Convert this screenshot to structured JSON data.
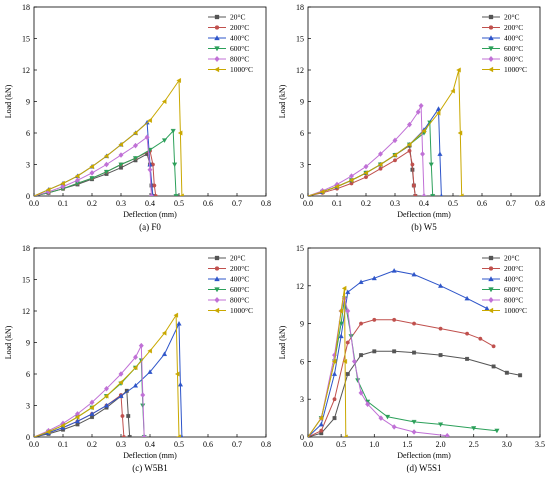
{
  "chart_data": [
    {
      "type": "line",
      "caption": "(a) F0",
      "xlabel": "Deflection (mm)",
      "ylabel": "Load (kN)",
      "xlim": [
        0.0,
        0.8
      ],
      "ylim": [
        0,
        18
      ],
      "xticks": [
        "0.0",
        "0.1",
        "0.2",
        "0.3",
        "0.4",
        "0.5",
        "0.6",
        "0.7",
        "0.8"
      ],
      "yticks": [
        "0",
        "3",
        "6",
        "9",
        "12",
        "15",
        "18"
      ],
      "legend": "top-right",
      "series": [
        {
          "name": "20°C",
          "color": "#555555",
          "marker": "square",
          "x": [
            0,
            0.05,
            0.1,
            0.15,
            0.2,
            0.25,
            0.3,
            0.35,
            0.39,
            0.4,
            0.405,
            0.41
          ],
          "y": [
            0,
            0.3,
            0.7,
            1.1,
            1.6,
            2.1,
            2.7,
            3.4,
            4.0,
            3.0,
            1.0,
            0
          ]
        },
        {
          "name": "200°C",
          "color": "#c0504d",
          "marker": "circle",
          "x": [
            0,
            0.05,
            0.1,
            0.15,
            0.2,
            0.25,
            0.3,
            0.35,
            0.4,
            0.41,
            0.415,
            0.42
          ],
          "y": [
            0,
            0.3,
            0.7,
            1.2,
            1.7,
            2.3,
            3.0,
            3.6,
            4.3,
            3.0,
            1.0,
            0
          ]
        },
        {
          "name": "400°C",
          "color": "#2e55c9",
          "marker": "triangle-up",
          "x": [
            0,
            0.05,
            0.1,
            0.15,
            0.2,
            0.25,
            0.3,
            0.35,
            0.39,
            0.4,
            0.41
          ],
          "y": [
            0,
            0.6,
            1.2,
            1.9,
            2.8,
            3.8,
            4.9,
            6.0,
            7.0,
            3.0,
            0
          ]
        },
        {
          "name": "600°C",
          "color": "#2ca05a",
          "marker": "triangle-down",
          "x": [
            0,
            0.05,
            0.1,
            0.15,
            0.2,
            0.25,
            0.3,
            0.35,
            0.4,
            0.45,
            0.48,
            0.485,
            0.49
          ],
          "y": [
            0,
            0.3,
            0.7,
            1.2,
            1.7,
            2.3,
            3.0,
            3.6,
            4.4,
            5.3,
            6.2,
            3.0,
            0
          ]
        },
        {
          "name": "800°C",
          "color": "#c070d6",
          "marker": "diamond",
          "x": [
            0,
            0.05,
            0.1,
            0.15,
            0.2,
            0.25,
            0.3,
            0.35,
            0.39,
            0.4,
            0.405
          ],
          "y": [
            0,
            0.4,
            0.9,
            1.5,
            2.2,
            3.0,
            3.9,
            4.8,
            5.6,
            2.5,
            0
          ]
        },
        {
          "name": "1000°C",
          "color": "#c9a800",
          "marker": "triangle-left",
          "x": [
            0,
            0.05,
            0.1,
            0.15,
            0.2,
            0.25,
            0.3,
            0.35,
            0.4,
            0.45,
            0.5,
            0.505,
            0.51
          ],
          "y": [
            0,
            0.6,
            1.2,
            1.9,
            2.8,
            3.8,
            4.9,
            6.0,
            7.2,
            9.0,
            11.0,
            6.0,
            0
          ]
        }
      ]
    },
    {
      "type": "line",
      "caption": "(b) W5",
      "xlabel": "Deflection (mm)",
      "ylabel": "Load (kN)",
      "xlim": [
        0.0,
        0.8
      ],
      "ylim": [
        0,
        18
      ],
      "xticks": [
        "0.0",
        "0.1",
        "0.2",
        "0.3",
        "0.4",
        "0.5",
        "0.6",
        "0.7",
        "0.8"
      ],
      "yticks": [
        "0",
        "3",
        "6",
        "9",
        "12",
        "15",
        "18"
      ],
      "legend": "top-right",
      "series": [
        {
          "name": "20°C",
          "color": "#555555",
          "marker": "square",
          "x": [
            0,
            0.05,
            0.1,
            0.15,
            0.2,
            0.25,
            0.3,
            0.35,
            0.36,
            0.365,
            0.37
          ],
          "y": [
            0,
            0.4,
            0.9,
            1.5,
            2.2,
            3.0,
            3.9,
            4.8,
            2.5,
            1.0,
            0
          ]
        },
        {
          "name": "200°C",
          "color": "#c0504d",
          "marker": "circle",
          "x": [
            0,
            0.05,
            0.1,
            0.15,
            0.2,
            0.25,
            0.3,
            0.35,
            0.36,
            0.365,
            0.37
          ],
          "y": [
            0,
            0.3,
            0.7,
            1.2,
            1.8,
            2.6,
            3.4,
            4.3,
            3.0,
            1.0,
            0
          ]
        },
        {
          "name": "400°C",
          "color": "#2e55c9",
          "marker": "triangle-up",
          "x": [
            0,
            0.05,
            0.1,
            0.15,
            0.2,
            0.25,
            0.3,
            0.35,
            0.4,
            0.45,
            0.455,
            0.46
          ],
          "y": [
            0,
            0.4,
            0.9,
            1.5,
            2.2,
            3.0,
            3.9,
            4.9,
            6.3,
            8.3,
            4.0,
            0
          ]
        },
        {
          "name": "600°C",
          "color": "#2ca05a",
          "marker": "triangle-down",
          "x": [
            0,
            0.05,
            0.1,
            0.15,
            0.2,
            0.25,
            0.3,
            0.35,
            0.4,
            0.42,
            0.425,
            0.43
          ],
          "y": [
            0,
            0.4,
            0.9,
            1.5,
            2.2,
            3.0,
            3.9,
            4.9,
            6.0,
            7.0,
            3.0,
            0
          ]
        },
        {
          "name": "800°C",
          "color": "#c070d6",
          "marker": "diamond",
          "x": [
            0,
            0.05,
            0.1,
            0.15,
            0.2,
            0.25,
            0.3,
            0.35,
            0.38,
            0.39,
            0.395,
            0.4
          ],
          "y": [
            0,
            0.5,
            1.1,
            1.9,
            2.8,
            4.0,
            5.3,
            6.8,
            8.0,
            8.6,
            4.0,
            0
          ]
        },
        {
          "name": "1000°C",
          "color": "#c9a800",
          "marker": "triangle-left",
          "x": [
            0,
            0.05,
            0.1,
            0.15,
            0.2,
            0.25,
            0.3,
            0.35,
            0.4,
            0.45,
            0.5,
            0.52,
            0.525,
            0.53
          ],
          "y": [
            0,
            0.4,
            0.9,
            1.5,
            2.2,
            3.0,
            3.9,
            4.9,
            6.2,
            7.9,
            10.0,
            12.0,
            6.0,
            0
          ]
        }
      ]
    },
    {
      "type": "line",
      "caption": "(c) W5B1",
      "xlabel": "Deflection (mm)",
      "ylabel": "Load (kN)",
      "xlim": [
        0.0,
        0.8
      ],
      "ylim": [
        0,
        18
      ],
      "xticks": [
        "0.0",
        "0.1",
        "0.2",
        "0.3",
        "0.4",
        "0.5",
        "0.6",
        "0.7",
        "0.8"
      ],
      "yticks": [
        "0",
        "3",
        "6",
        "9",
        "12",
        "15",
        "18"
      ],
      "legend": "top-right",
      "series": [
        {
          "name": "20°C",
          "color": "#555555",
          "marker": "square",
          "x": [
            0,
            0.05,
            0.1,
            0.15,
            0.2,
            0.25,
            0.3,
            0.32,
            0.325,
            0.33
          ],
          "y": [
            0,
            0.3,
            0.7,
            1.2,
            1.9,
            2.8,
            3.9,
            4.4,
            2.0,
            0
          ]
        },
        {
          "name": "200°C",
          "color": "#c0504d",
          "marker": "circle",
          "x": [
            0,
            0.05,
            0.1,
            0.15,
            0.2,
            0.25,
            0.3,
            0.305,
            0.31
          ],
          "y": [
            0,
            0.4,
            0.9,
            1.5,
            2.2,
            3.0,
            4.0,
            2.0,
            0
          ]
        },
        {
          "name": "400°C",
          "color": "#2e55c9",
          "marker": "triangle-up",
          "x": [
            0,
            0.05,
            0.1,
            0.15,
            0.2,
            0.25,
            0.3,
            0.35,
            0.4,
            0.45,
            0.5,
            0.505,
            0.51
          ],
          "y": [
            0,
            0.4,
            0.9,
            1.5,
            2.2,
            3.0,
            3.9,
            4.9,
            6.2,
            7.9,
            10.8,
            5.0,
            0
          ]
        },
        {
          "name": "600°C",
          "color": "#2ca05a",
          "marker": "triangle-down",
          "x": [
            0,
            0.05,
            0.1,
            0.15,
            0.2,
            0.25,
            0.3,
            0.35,
            0.37,
            0.375,
            0.38
          ],
          "y": [
            0,
            0.5,
            1.1,
            1.9,
            2.8,
            3.9,
            5.1,
            6.6,
            7.3,
            3.0,
            0
          ]
        },
        {
          "name": "800°C",
          "color": "#c070d6",
          "marker": "diamond",
          "x": [
            0,
            0.05,
            0.1,
            0.15,
            0.2,
            0.25,
            0.3,
            0.35,
            0.37,
            0.375,
            0.38
          ],
          "y": [
            0,
            0.6,
            1.3,
            2.2,
            3.3,
            4.6,
            6.0,
            7.6,
            8.7,
            4.0,
            0
          ]
        },
        {
          "name": "1000°C",
          "color": "#c9a800",
          "marker": "triangle-left",
          "x": [
            0,
            0.05,
            0.1,
            0.15,
            0.2,
            0.25,
            0.3,
            0.35,
            0.4,
            0.45,
            0.49,
            0.495,
            0.5
          ],
          "y": [
            0,
            0.5,
            1.1,
            1.9,
            2.8,
            3.9,
            5.2,
            6.6,
            8.2,
            9.9,
            11.6,
            6.0,
            0
          ]
        }
      ]
    },
    {
      "type": "line",
      "caption": "(d) W5S1",
      "xlabel": "Deflection (mm)",
      "ylabel": "Load (kN)",
      "xlim": [
        0.0,
        3.5
      ],
      "ylim": [
        0,
        15
      ],
      "xticks": [
        "0.0",
        "0.5",
        "1.0",
        "1.5",
        "2.0",
        "2.5",
        "3.0",
        "3.5"
      ],
      "yticks": [
        "0",
        "3",
        "6",
        "9",
        "12",
        "15"
      ],
      "legend": "top-right",
      "series": [
        {
          "name": "20°C",
          "color": "#555555",
          "marker": "square",
          "x": [
            0,
            0.2,
            0.4,
            0.6,
            0.8,
            1.0,
            1.3,
            1.6,
            2.0,
            2.4,
            2.8,
            3.0,
            3.2
          ],
          "y": [
            0,
            0.3,
            1.5,
            5.0,
            6.5,
            6.8,
            6.8,
            6.7,
            6.5,
            6.2,
            5.6,
            5.1,
            4.9
          ]
        },
        {
          "name": "200°C",
          "color": "#c0504d",
          "marker": "circle",
          "x": [
            0,
            0.2,
            0.4,
            0.6,
            0.8,
            1.0,
            1.3,
            1.6,
            2.0,
            2.4,
            2.6,
            2.8
          ],
          "y": [
            0,
            0.5,
            3.0,
            7.5,
            9.0,
            9.3,
            9.3,
            9.0,
            8.6,
            8.2,
            7.8,
            7.2
          ]
        },
        {
          "name": "400°C",
          "color": "#2e55c9",
          "marker": "triangle-up",
          "x": [
            0,
            0.2,
            0.4,
            0.5,
            0.6,
            0.8,
            1.0,
            1.3,
            1.6,
            2.0,
            2.4,
            2.7
          ],
          "y": [
            0,
            1.0,
            5.0,
            8.0,
            11.5,
            12.3,
            12.6,
            13.2,
            12.9,
            12.0,
            11.0,
            10.2
          ]
        },
        {
          "name": "600°C",
          "color": "#2ca05a",
          "marker": "triangle-down",
          "x": [
            0,
            0.2,
            0.4,
            0.5,
            0.55,
            0.65,
            0.75,
            0.9,
            1.2,
            1.6,
            2.0,
            2.5,
            2.85
          ],
          "y": [
            0,
            1.5,
            6.0,
            9.0,
            11.0,
            8.0,
            4.5,
            2.8,
            1.6,
            1.2,
            1.0,
            0.7,
            0.5
          ]
        },
        {
          "name": "800°C",
          "color": "#c070d6",
          "marker": "diamond",
          "x": [
            0,
            0.2,
            0.4,
            0.5,
            0.55,
            0.6,
            0.7,
            0.8,
            0.9,
            1.1,
            1.3,
            1.6,
            2.1
          ],
          "y": [
            0,
            1.5,
            6.5,
            10.0,
            11.0,
            10.0,
            6.0,
            3.5,
            2.6,
            1.5,
            0.8,
            0.4,
            0.1
          ]
        },
        {
          "name": "1000°C",
          "color": "#c9a800",
          "marker": "triangle-left",
          "x": [
            0,
            0.2,
            0.4,
            0.5,
            0.55,
            0.56,
            0.57
          ],
          "y": [
            0,
            1.5,
            6.0,
            10.0,
            11.8,
            6.0,
            0
          ]
        }
      ]
    }
  ]
}
